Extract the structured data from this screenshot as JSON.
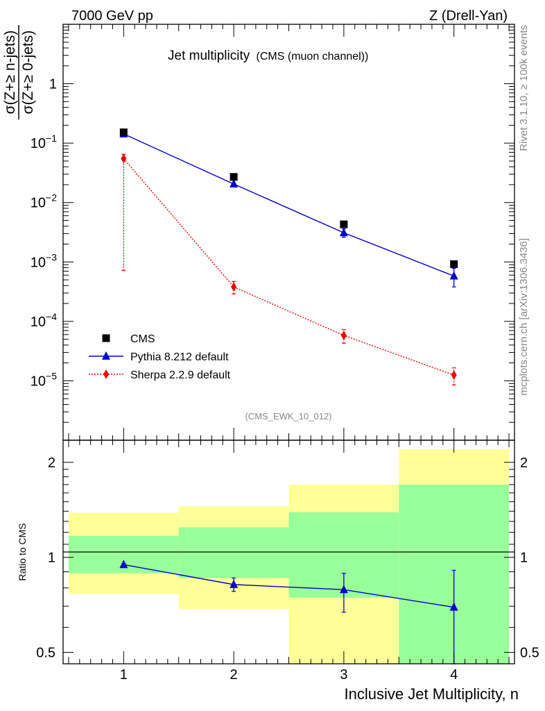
{
  "header": {
    "left": "7000 GeV pp",
    "right": "Z (Drell-Yan)"
  },
  "side_labels": {
    "rivet": "Rivet 3.1.10, ≥ 100k events",
    "source": "mcplots.cern.ch [arXiv:1306.3436]"
  },
  "chart_data": [
    {
      "type": "scatter",
      "title": "Jet multiplicity",
      "subtitle": "(CMS (muon channel))",
      "watermark": "(CMS_EWK_10_012)",
      "ylabel_num": "σ(Z+≥ n-jets)",
      "ylabel_den": "σ(Z+≥ 0-jets)",
      "yscale": "log",
      "ylim": [
        1e-06,
        10
      ],
      "xlim": [
        0.45,
        4.55
      ],
      "y_ticks": [
        {
          "value": 1,
          "label": "1"
        },
        {
          "value": 0.1,
          "label": "10^-1"
        },
        {
          "value": 0.01,
          "label": "10^-2"
        },
        {
          "value": 0.001,
          "label": "10^-3"
        },
        {
          "value": 0.0001,
          "label": "10^-4"
        },
        {
          "value": 1e-05,
          "label": "10^-5"
        }
      ],
      "legend_position": "bottom-left",
      "x": [
        1,
        2,
        3,
        4
      ],
      "series": [
        {
          "name": "CMS",
          "color": "#000000",
          "marker": "square",
          "line": "none",
          "values": [
            0.152,
            0.027,
            0.0043,
            0.00092
          ]
        },
        {
          "name": "Pythia 8.212 default",
          "color": "#0000cc",
          "marker": "triangle",
          "line": "solid",
          "values": [
            0.143,
            0.0205,
            0.0031,
            0.00058
          ],
          "err_low": [
            0.137,
            0.0195,
            0.0026,
            0.00038
          ],
          "err_high": [
            0.149,
            0.0215,
            0.0036,
            0.00078
          ]
        },
        {
          "name": "Sherpa 2.2.9 default",
          "color": "#ee0000",
          "marker": "diamond",
          "line": "dotted",
          "values": [
            0.055,
            0.00038,
            5.8e-05,
            1.25e-05
          ],
          "err_low": [
            0.00072,
            0.00029,
            4.3e-05,
            8.5e-06
          ],
          "err_high": [
            0.065,
            0.00047,
            7.3e-05,
            1.65e-05
          ]
        }
      ]
    },
    {
      "type": "area",
      "ylabel": "Ratio to CMS",
      "xlabel": "Inclusive Jet Multiplicity, n",
      "yscale": "log",
      "ylim": [
        0.46,
        2.35
      ],
      "xlim": [
        0.45,
        4.55
      ],
      "x_ticks": [
        1,
        2,
        3,
        4
      ],
      "y_ticks": [
        {
          "value": 0.5,
          "label": "0.5"
        },
        {
          "value": 1,
          "label": "1"
        },
        {
          "value": 2,
          "label": "2"
        }
      ],
      "bins": [
        {
          "lo": 0.5,
          "hi": 1.5,
          "yellow": [
            0.765,
            1.385
          ],
          "green": [
            0.89,
            1.17
          ]
        },
        {
          "lo": 1.5,
          "hi": 2.5,
          "yellow": [
            0.685,
            1.45
          ],
          "green": [
            0.86,
            1.245
          ]
        },
        {
          "lo": 2.5,
          "hi": 3.5,
          "yellow": [
            0.3,
            1.7
          ],
          "green": [
            0.745,
            1.39
          ]
        },
        {
          "lo": 3.5,
          "hi": 4.5,
          "yellow": [
            0.3,
            2.2
          ],
          "green": [
            0.3,
            1.7
          ]
        }
      ],
      "series": [
        {
          "name": "Pythia 8.212 default",
          "color": "#0000cc",
          "x": [
            1,
            2,
            3,
            4
          ],
          "values": [
            0.948,
            0.82,
            0.79,
            0.695
          ],
          "err_low": [
            0.94,
            0.78,
            0.67,
            0.38
          ],
          "err_high": [
            0.956,
            0.86,
            0.89,
            0.91
          ]
        }
      ]
    }
  ]
}
